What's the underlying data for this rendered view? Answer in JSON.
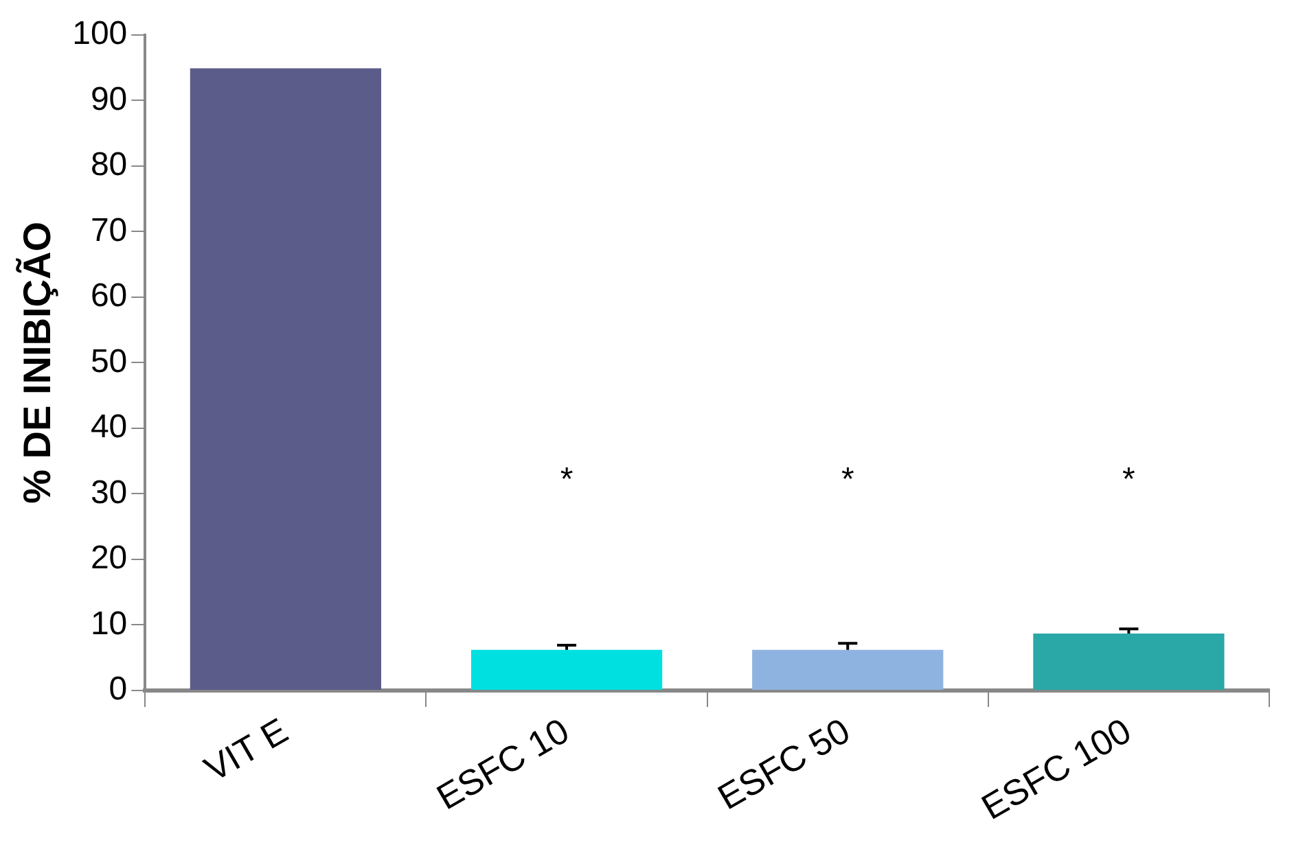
{
  "chart_data": {
    "type": "bar",
    "ylabel": "% DE INIBIÇÃO",
    "categories": [
      "VIT E",
      "ESFC 10",
      "ESFC 50",
      "ESFC 100"
    ],
    "values": [
      94.9,
      6.2,
      6.2,
      8.7
    ],
    "colors": [
      "#5c5c8a",
      "#00e0e0",
      "#8fb3e0",
      "#2aa8a8"
    ],
    "errors": [
      null,
      [
        6.2,
        6.9
      ],
      [
        6.2,
        7.2
      ],
      [
        8.7,
        9.4
      ]
    ],
    "ylim": [
      0,
      100
    ],
    "yticks": [
      0,
      10,
      20,
      30,
      40,
      50,
      60,
      70,
      80,
      90,
      100
    ],
    "grid": false,
    "legend": false,
    "annotations": [
      "*",
      "*",
      "*"
    ]
  }
}
